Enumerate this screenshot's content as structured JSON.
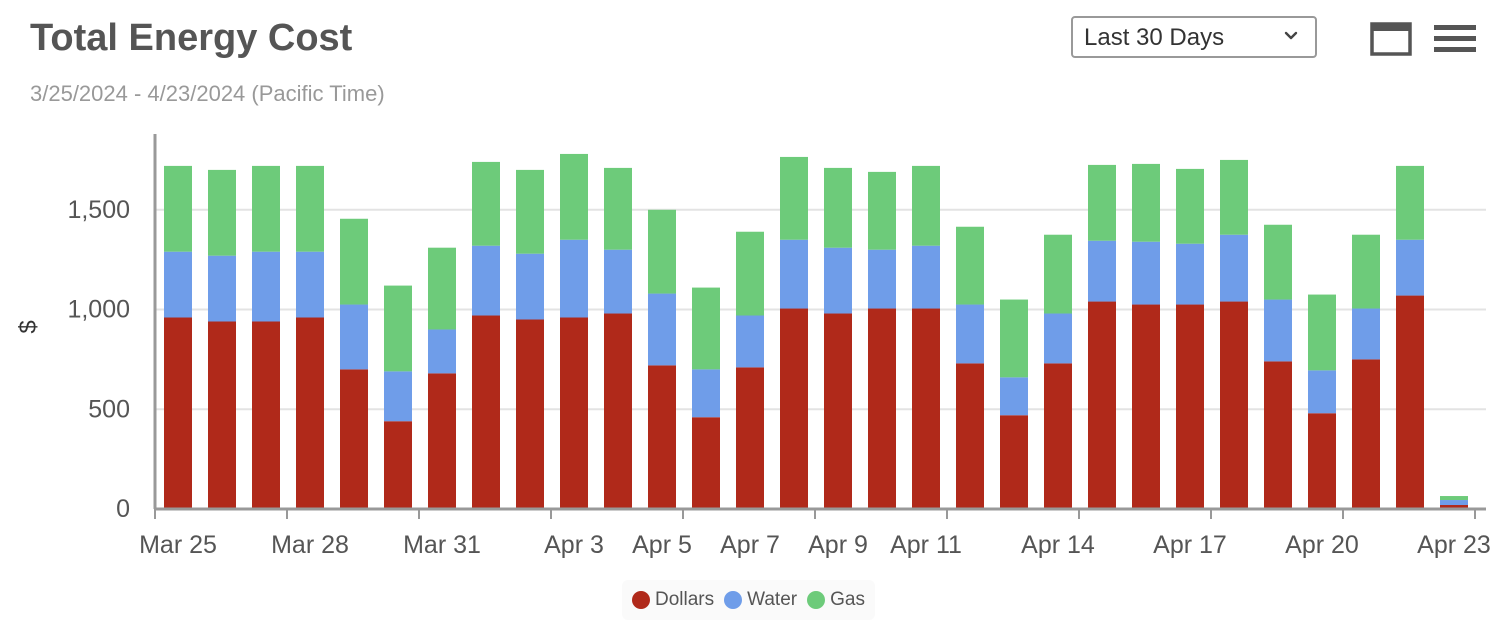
{
  "header": {
    "title": "Total Energy Cost",
    "subtitle": "3/25/2024 - 4/23/2024 (Pacific Time)",
    "range_select": {
      "value": "Last 30 Days"
    },
    "fullscreen_icon": "fullscreen-icon",
    "menu_icon": "menu-icon"
  },
  "chart_data": {
    "type": "bar",
    "stacked": true,
    "ylabel": "$",
    "ylim": [
      0,
      1900
    ],
    "yticks": [
      0,
      500,
      1000,
      1500
    ],
    "ytick_labels": [
      "0",
      "500",
      "1,000",
      "1,500"
    ],
    "grid": true,
    "legend_position": "bottom-center",
    "categories": [
      "Mar 25",
      "Mar 26",
      "Mar 27",
      "Mar 28",
      "Mar 29",
      "Mar 30",
      "Mar 31",
      "Apr 1",
      "Apr 2",
      "Apr 3",
      "Apr 4",
      "Apr 5",
      "Apr 6",
      "Apr 7",
      "Apr 8",
      "Apr 9",
      "Apr 10",
      "Apr 11",
      "Apr 12",
      "Apr 13",
      "Apr 14",
      "Apr 15",
      "Apr 16",
      "Apr 17",
      "Apr 18",
      "Apr 19",
      "Apr 20",
      "Apr 21",
      "Apr 22",
      "Apr 23"
    ],
    "xtick_labels": [
      {
        "index": 0,
        "label": "Mar 25"
      },
      {
        "index": 3,
        "label": "Mar 28"
      },
      {
        "index": 6,
        "label": "Mar 31"
      },
      {
        "index": 9,
        "label": "Apr 3"
      },
      {
        "index": 11,
        "label": "Apr 5"
      },
      {
        "index": 13,
        "label": "Apr 7"
      },
      {
        "index": 15,
        "label": "Apr 9"
      },
      {
        "index": 17,
        "label": "Apr 11"
      },
      {
        "index": 20,
        "label": "Apr 14"
      },
      {
        "index": 23,
        "label": "Apr 17"
      },
      {
        "index": 26,
        "label": "Apr 20"
      },
      {
        "index": 29,
        "label": "Apr 23"
      }
    ],
    "series": [
      {
        "name": "Dollars",
        "color": "#b0291a",
        "values": [
          960,
          940,
          940,
          960,
          700,
          440,
          680,
          970,
          950,
          960,
          980,
          720,
          460,
          710,
          1005,
          980,
          1005,
          1005,
          730,
          470,
          730,
          1040,
          1025,
          1025,
          1040,
          740,
          480,
          750,
          1070,
          20
        ]
      },
      {
        "name": "Water",
        "color": "#6f9de9",
        "values": [
          330,
          330,
          350,
          330,
          325,
          250,
          220,
          350,
          330,
          390,
          320,
          360,
          240,
          260,
          345,
          330,
          295,
          315,
          295,
          190,
          250,
          305,
          315,
          305,
          335,
          310,
          215,
          255,
          280,
          25
        ]
      },
      {
        "name": "Gas",
        "color": "#6dcb7a",
        "values": [
          430,
          430,
          430,
          430,
          430,
          430,
          410,
          420,
          420,
          430,
          410,
          420,
          410,
          420,
          415,
          400,
          390,
          400,
          390,
          390,
          395,
          380,
          390,
          375,
          375,
          375,
          380,
          370,
          370,
          20
        ]
      }
    ]
  }
}
